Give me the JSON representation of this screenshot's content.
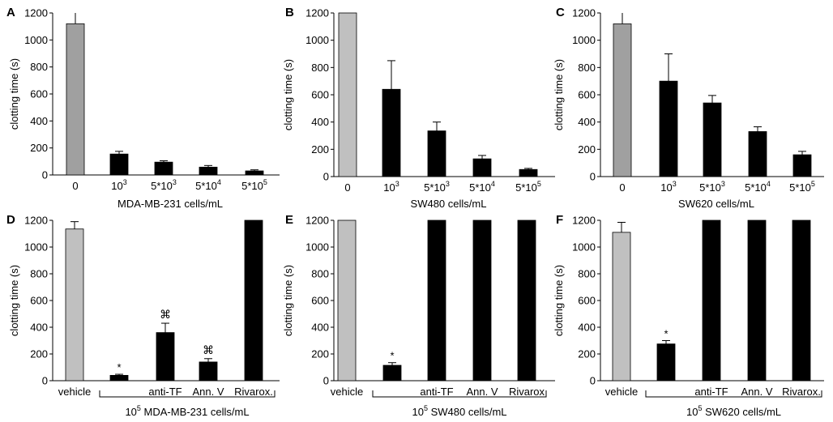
{
  "colors": {
    "vehicle_gray_dark": "#a0a0a0",
    "vehicle_gray_light": "#c0c0c0",
    "bar": "#000000",
    "axis": "#000000"
  },
  "chart_data": [
    {
      "type": "bar",
      "panel": "A",
      "ylabel": "clotting time (s)",
      "xlabel": "MDA-MB-231 cells/mL",
      "ylim": [
        0,
        1200
      ],
      "yticks": [
        0,
        200,
        400,
        600,
        800,
        1000,
        1200
      ],
      "categories": [
        {
          "label": "0",
          "sup": "",
          "value": 1120,
          "error": 90,
          "color": "#a0a0a0",
          "marker": ""
        },
        {
          "label": "10",
          "sup": "3",
          "value": 155,
          "error": 20,
          "color": "#000000",
          "marker": ""
        },
        {
          "label": "5*10",
          "sup": "3",
          "value": 95,
          "error": 10,
          "color": "#000000",
          "marker": ""
        },
        {
          "label": "5*10",
          "sup": "4",
          "value": 58,
          "error": 12,
          "color": "#000000",
          "marker": ""
        },
        {
          "label": "5*10",
          "sup": "5",
          "value": 30,
          "error": 8,
          "color": "#000000",
          "marker": ""
        }
      ],
      "bracket": ""
    },
    {
      "type": "bar",
      "panel": "B",
      "ylabel": "clotting time (s)",
      "xlabel": "SW480 cells/mL",
      "ylim": [
        0,
        1200
      ],
      "yticks": [
        0,
        200,
        400,
        600,
        800,
        1000,
        1200
      ],
      "categories": [
        {
          "label": "0",
          "sup": "",
          "value": 1200,
          "error": 0,
          "color": "#c0c0c0",
          "marker": ""
        },
        {
          "label": "10",
          "sup": "3",
          "value": 640,
          "error": 210,
          "color": "#000000",
          "marker": ""
        },
        {
          "label": "5*10",
          "sup": "3",
          "value": 335,
          "error": 65,
          "color": "#000000",
          "marker": ""
        },
        {
          "label": "5*10",
          "sup": "4",
          "value": 130,
          "error": 25,
          "color": "#000000",
          "marker": ""
        },
        {
          "label": "5*10",
          "sup": "5",
          "value": 52,
          "error": 8,
          "color": "#000000",
          "marker": ""
        }
      ],
      "bracket": ""
    },
    {
      "type": "bar",
      "panel": "C",
      "ylabel": "clotting time (s)",
      "xlabel": "SW620 cells/mL",
      "ylim": [
        0,
        1200
      ],
      "yticks": [
        0,
        200,
        400,
        600,
        800,
        1000,
        1200
      ],
      "categories": [
        {
          "label": "0",
          "sup": "",
          "value": 1120,
          "error": 80,
          "color": "#a0a0a0",
          "marker": ""
        },
        {
          "label": "10",
          "sup": "3",
          "value": 700,
          "error": 200,
          "color": "#000000",
          "marker": ""
        },
        {
          "label": "5*10",
          "sup": "3",
          "value": 540,
          "error": 55,
          "color": "#000000",
          "marker": ""
        },
        {
          "label": "5*10",
          "sup": "4",
          "value": 330,
          "error": 35,
          "color": "#000000",
          "marker": ""
        },
        {
          "label": "5*10",
          "sup": "5",
          "value": 160,
          "error": 25,
          "color": "#000000",
          "marker": ""
        }
      ],
      "bracket": ""
    },
    {
      "type": "bar",
      "panel": "D",
      "ylabel": "clotting time (s)",
      "xlabel": "",
      "ylim": [
        0,
        1200
      ],
      "yticks": [
        0,
        200,
        400,
        600,
        800,
        1000,
        1200
      ],
      "categories": [
        {
          "label": "vehicle",
          "sup": "",
          "value": 1135,
          "error": 55,
          "color": "#c0c0c0",
          "marker": ""
        },
        {
          "label": "",
          "sup": "",
          "value": 40,
          "error": 8,
          "color": "#000000",
          "marker": "*"
        },
        {
          "label": "anti-TF",
          "sup": "",
          "value": 360,
          "error": 70,
          "color": "#000000",
          "marker": "⌘"
        },
        {
          "label": "Ann. V",
          "sup": "",
          "value": 140,
          "error": 25,
          "color": "#000000",
          "marker": "⌘"
        },
        {
          "label": "Rivarox.",
          "sup": "",
          "value": 1200,
          "error": 0,
          "color": "#000000",
          "marker": ""
        }
      ],
      "bracket": {
        "prefix": "10",
        "sup": "5",
        "text": " MDA-MB-231 cells/mL"
      }
    },
    {
      "type": "bar",
      "panel": "E",
      "ylabel": "clotting time (s)",
      "xlabel": "",
      "ylim": [
        0,
        1200
      ],
      "yticks": [
        0,
        200,
        400,
        600,
        800,
        1000,
        1200
      ],
      "categories": [
        {
          "label": "vehicle",
          "sup": "",
          "value": 1200,
          "error": 0,
          "color": "#c0c0c0",
          "marker": ""
        },
        {
          "label": "",
          "sup": "",
          "value": 115,
          "error": 20,
          "color": "#000000",
          "marker": "*"
        },
        {
          "label": "anti-TF",
          "sup": "",
          "value": 1200,
          "error": 0,
          "color": "#000000",
          "marker": ""
        },
        {
          "label": "Ann. V",
          "sup": "",
          "value": 1200,
          "error": 0,
          "color": "#000000",
          "marker": ""
        },
        {
          "label": "Rivarox",
          "sup": "",
          "value": 1200,
          "error": 0,
          "color": "#000000",
          "marker": ""
        }
      ],
      "bracket": {
        "prefix": "10",
        "sup": "5",
        "text": " SW480 cells/mL"
      }
    },
    {
      "type": "bar",
      "panel": "F",
      "ylabel": "clotting time (s)",
      "xlabel": "",
      "ylim": [
        0,
        1200
      ],
      "yticks": [
        0,
        200,
        400,
        600,
        800,
        1000,
        1200
      ],
      "categories": [
        {
          "label": "vehicle",
          "sup": "",
          "value": 1110,
          "error": 75,
          "color": "#c0c0c0",
          "marker": ""
        },
        {
          "label": "",
          "sup": "",
          "value": 275,
          "error": 25,
          "color": "#000000",
          "marker": "*"
        },
        {
          "label": "anti-TF",
          "sup": "",
          "value": 1200,
          "error": 0,
          "color": "#000000",
          "marker": ""
        },
        {
          "label": "Ann. V",
          "sup": "",
          "value": 1200,
          "error": 0,
          "color": "#000000",
          "marker": ""
        },
        {
          "label": "Rivarox.",
          "sup": "",
          "value": 1200,
          "error": 0,
          "color": "#000000",
          "marker": ""
        }
      ],
      "bracket": {
        "prefix": "10",
        "sup": "5",
        "text": " SW620 cells/mL"
      }
    }
  ]
}
